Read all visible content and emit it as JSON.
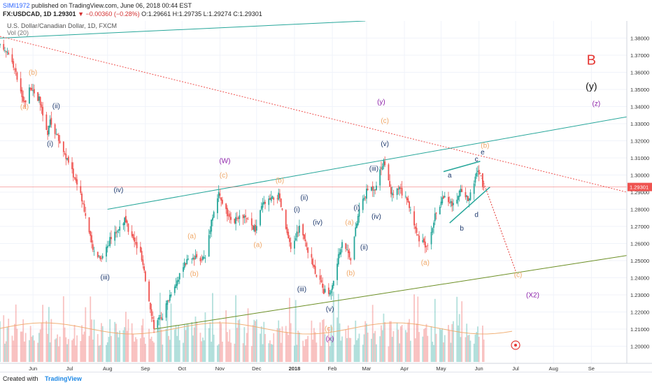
{
  "header": {
    "author": "SIMI1972",
    "published": "published on TradingView.com, June 06, 2018 00:44 EST",
    "symbol": "FX:USDCAD, 1D",
    "last": "1.29301",
    "change": "−0.00360 (−0.28%)",
    "ohlc": "O:1.29661 H:1.29735 L:1.29274 C:1.29301"
  },
  "footer": {
    "created_with": "Created with",
    "brand": "TradingView"
  },
  "colors": {
    "up": "#26a69a",
    "down": "#ef5350",
    "price_line": "#ef5350",
    "channel": "#26a69a",
    "support": "#6b8e23"
  },
  "chart_data": {
    "type": "candlestick",
    "title": "U.S. Dollar/Canadian Dollar, 1D, FXCM",
    "indicator": "Vol (20)",
    "y_range": [
      1.19,
      1.39
    ],
    "y_ticks": [
      "1.38000",
      "1.37000",
      "1.36000",
      "1.35000",
      "1.34000",
      "1.33000",
      "1.32000",
      "1.31000",
      "1.30000",
      "1.29000",
      "1.28000",
      "1.27000",
      "1.26000",
      "1.25000",
      "1.24000",
      "1.23000",
      "1.22000",
      "1.21000",
      "1.20000"
    ],
    "y_tick_values": [
      1.38,
      1.37,
      1.36,
      1.35,
      1.34,
      1.33,
      1.32,
      1.31,
      1.3,
      1.29,
      1.28,
      1.27,
      1.26,
      1.25,
      1.24,
      1.23,
      1.22,
      1.21,
      1.2
    ],
    "x_range": [
      "2017-05-05",
      "2018-09-30"
    ],
    "x_ticks": [
      {
        "label": "Jun",
        "date": "2017-06-01"
      },
      {
        "label": "Jul",
        "date": "2017-07-01"
      },
      {
        "label": "Aug",
        "date": "2017-08-01"
      },
      {
        "label": "Sep",
        "date": "2017-09-01"
      },
      {
        "label": "Oct",
        "date": "2017-10-01"
      },
      {
        "label": "Nov",
        "date": "2017-11-01"
      },
      {
        "label": "Dec",
        "date": "2017-12-01"
      },
      {
        "label": "2018",
        "date": "2018-01-01"
      },
      {
        "label": "Feb",
        "date": "2018-02-01"
      },
      {
        "label": "Mar",
        "date": "2018-03-01"
      },
      {
        "label": "Apr",
        "date": "2018-04-01"
      },
      {
        "label": "May",
        "date": "2018-05-01"
      },
      {
        "label": "Jun",
        "date": "2018-06-01"
      },
      {
        "label": "Jul",
        "date": "2018-07-01"
      },
      {
        "label": "Aug",
        "date": "2018-08-01"
      },
      {
        "label": "Se",
        "date": "2018-09-01"
      }
    ],
    "last_price": 1.29301,
    "last_price_label": "1.29301",
    "price_path": [
      [
        "2017-05-05",
        1.375
      ],
      [
        "2017-05-12",
        1.372
      ],
      [
        "2017-05-22",
        1.35
      ],
      [
        "2017-05-25",
        1.342
      ],
      [
        "2017-05-30",
        1.352
      ],
      [
        "2017-06-06",
        1.344
      ],
      [
        "2017-06-13",
        1.323
      ],
      [
        "2017-06-15",
        1.332
      ],
      [
        "2017-06-26",
        1.314
      ],
      [
        "2017-07-10",
        1.29
      ],
      [
        "2017-07-20",
        1.256
      ],
      [
        "2017-07-27",
        1.252
      ],
      [
        "2017-08-03",
        1.262
      ],
      [
        "2017-08-15",
        1.274
      ],
      [
        "2017-08-18",
        1.268
      ],
      [
        "2017-08-28",
        1.254
      ],
      [
        "2017-09-08",
        1.212
      ],
      [
        "2017-09-15",
        1.218
      ],
      [
        "2017-09-22",
        1.232
      ],
      [
        "2017-10-05",
        1.25
      ],
      [
        "2017-10-20",
        1.252
      ],
      [
        "2017-10-25",
        1.274
      ],
      [
        "2017-10-31",
        1.289
      ],
      [
        "2017-11-10",
        1.272
      ],
      [
        "2017-11-20",
        1.276
      ],
      [
        "2017-11-30",
        1.268
      ],
      [
        "2017-12-06",
        1.283
      ],
      [
        "2017-12-19",
        1.288
      ],
      [
        "2017-12-29",
        1.256
      ],
      [
        "2018-01-05",
        1.27
      ],
      [
        "2018-01-17",
        1.246
      ],
      [
        "2018-01-25",
        1.232
      ],
      [
        "2018-01-31",
        1.232
      ],
      [
        "2018-02-09",
        1.262
      ],
      [
        "2018-02-16",
        1.252
      ],
      [
        "2018-02-23",
        1.28
      ],
      [
        "2018-03-02",
        1.292
      ],
      [
        "2018-03-08",
        1.293
      ],
      [
        "2018-03-15",
        1.309
      ],
      [
        "2018-03-21",
        1.288
      ],
      [
        "2018-03-28",
        1.292
      ],
      [
        "2018-04-05",
        1.282
      ],
      [
        "2018-04-13",
        1.262
      ],
      [
        "2018-04-19",
        1.258
      ],
      [
        "2018-04-26",
        1.276
      ],
      [
        "2018-05-04",
        1.289
      ],
      [
        "2018-05-11",
        1.282
      ],
      [
        "2018-05-17",
        1.292
      ],
      [
        "2018-05-24",
        1.285
      ],
      [
        "2018-05-30",
        1.303
      ],
      [
        "2018-06-05",
        1.293
      ]
    ],
    "channel_upper": [
      [
        "2017-08-01",
        1.28
      ],
      [
        "2018-09-30",
        1.334
      ]
    ],
    "channel_lower": [
      [
        "2017-09-08",
        1.21
      ],
      [
        "2018-09-30",
        1.253
      ]
    ],
    "top_line": [
      [
        "2017-05-05",
        1.38
      ],
      [
        "2018-02-28",
        1.39
      ]
    ],
    "downtrend_dotted": [
      [
        "2017-05-05",
        1.381
      ],
      [
        "2018-09-30",
        1.29
      ]
    ],
    "wedge_upper": [
      [
        "2018-05-03",
        1.302
      ],
      [
        "2018-06-02",
        1.308
      ]
    ],
    "wedge_lower": [
      [
        "2018-05-08",
        1.272
      ],
      [
        "2018-06-10",
        1.293
      ]
    ],
    "projection_dotted": [
      [
        "2018-06-01",
        1.303
      ],
      [
        "2018-07-01",
        1.244
      ]
    ],
    "volume": {
      "axis_label_tick": "Vol",
      "base_level": 0.55
    },
    "annotations": [
      {
        "text": "(b)",
        "date": "2017-06-01",
        "price": 1.3585,
        "color": "#f0a868",
        "size": 10
      },
      {
        "text": "(a)",
        "date": "2017-05-25",
        "price": 1.3385,
        "color": "#f0a868",
        "size": 10
      },
      {
        "text": "(ii)",
        "date": "2017-06-20",
        "price": 1.339,
        "color": "#1f3a6e",
        "size": 10
      },
      {
        "text": "(i)",
        "date": "2017-06-15",
        "price": 1.317,
        "color": "#1f3a6e",
        "size": 10
      },
      {
        "text": "(iv)",
        "date": "2017-08-10",
        "price": 1.29,
        "color": "#1f3a6e",
        "size": 10
      },
      {
        "text": "(iii)",
        "date": "2017-07-30",
        "price": 1.239,
        "color": "#1f3a6e",
        "size": 10
      },
      {
        "text": "(a)",
        "date": "2017-10-09",
        "price": 1.263,
        "color": "#f0a868",
        "size": 10
      },
      {
        "text": "(b)",
        "date": "2017-10-11",
        "price": 1.241,
        "color": "#f0a868",
        "size": 10
      },
      {
        "text": "(W)",
        "date": "2017-11-05",
        "price": 1.307,
        "color": "#8e24aa",
        "size": 10
      },
      {
        "text": "(c)",
        "date": "2017-11-04",
        "price": 1.2985,
        "color": "#f0a868",
        "size": 10
      },
      {
        "text": "(a)",
        "date": "2017-12-02",
        "price": 1.258,
        "color": "#f0a868",
        "size": 10
      },
      {
        "text": "(b)",
        "date": "2017-12-20",
        "price": 1.2955,
        "color": "#f0a868",
        "size": 10
      },
      {
        "text": "(ii)",
        "date": "2018-01-09",
        "price": 1.2855,
        "color": "#1f3a6e",
        "size": 10
      },
      {
        "text": "(i)",
        "date": "2018-01-03",
        "price": 1.2785,
        "color": "#1f3a6e",
        "size": 10
      },
      {
        "text": "(iv)",
        "date": "2018-01-20",
        "price": 1.271,
        "color": "#1f3a6e",
        "size": 10
      },
      {
        "text": "(iii)",
        "date": "2018-01-07",
        "price": 1.232,
        "color": "#1f3a6e",
        "size": 10
      },
      {
        "text": "(v)",
        "date": "2018-01-30",
        "price": 1.2205,
        "color": "#1f3a6e",
        "size": 10
      },
      {
        "text": "(c)",
        "date": "2018-01-29",
        "price": 1.209,
        "color": "#f0a868",
        "size": 10
      },
      {
        "text": "(x)",
        "date": "2018-01-30",
        "price": 1.203,
        "color": "#8e24aa",
        "size": 10
      },
      {
        "text": "(a)",
        "date": "2018-02-15",
        "price": 1.271,
        "color": "#f0a868",
        "size": 10
      },
      {
        "text": "(b)",
        "date": "2018-02-16",
        "price": 1.2415,
        "color": "#f0a868",
        "size": 10
      },
      {
        "text": "(i)",
        "date": "2018-02-21",
        "price": 1.2795,
        "color": "#1f3a6e",
        "size": 10
      },
      {
        "text": "(ii)",
        "date": "2018-02-27",
        "price": 1.2565,
        "color": "#1f3a6e",
        "size": 10
      },
      {
        "text": "(iii)",
        "date": "2018-03-07",
        "price": 1.3025,
        "color": "#1f3a6e",
        "size": 10
      },
      {
        "text": "(iv)",
        "date": "2018-03-09",
        "price": 1.2745,
        "color": "#1f3a6e",
        "size": 10
      },
      {
        "text": "(v)",
        "date": "2018-03-16",
        "price": 1.317,
        "color": "#1f3a6e",
        "size": 10
      },
      {
        "text": "(y)",
        "date": "2018-03-13",
        "price": 1.3415,
        "color": "#8e24aa",
        "size": 10
      },
      {
        "text": "(c)",
        "date": "2018-03-16",
        "price": 1.3305,
        "color": "#f0a868",
        "size": 10
      },
      {
        "text": "(a)",
        "date": "2018-04-18",
        "price": 1.2475,
        "color": "#f0a868",
        "size": 10
      },
      {
        "text": "a",
        "date": "2018-05-08",
        "price": 1.2985,
        "color": "#1f3a6e",
        "size": 10
      },
      {
        "text": "b",
        "date": "2018-05-18",
        "price": 1.2675,
        "color": "#1f3a6e",
        "size": 10
      },
      {
        "text": "c",
        "date": "2018-05-30",
        "price": 1.308,
        "color": "#1f3a6e",
        "size": 10
      },
      {
        "text": "d",
        "date": "2018-05-30",
        "price": 1.2755,
        "color": "#1f3a6e",
        "size": 10
      },
      {
        "text": "e",
        "date": "2018-06-04",
        "price": 1.312,
        "color": "#1f3a6e",
        "size": 10
      },
      {
        "text": "(b)",
        "date": "2018-06-06",
        "price": 1.316,
        "color": "#f0a868",
        "size": 10
      },
      {
        "text": "(c)",
        "date": "2018-07-03",
        "price": 1.2405,
        "color": "#f0a868",
        "size": 10
      },
      {
        "text": "(X2)",
        "date": "2018-07-15",
        "price": 1.2285,
        "color": "#8e24aa",
        "size": 10
      },
      {
        "text": "B",
        "date": "2018-09-01",
        "price": 1.3645,
        "color": "#e53935",
        "size": 20
      },
      {
        "text": "(y)",
        "date": "2018-09-01",
        "price": 1.35,
        "color": "#111111",
        "size": 14
      },
      {
        "text": "(z)",
        "date": "2018-09-05",
        "price": 1.3405,
        "color": "#8e24aa",
        "size": 10
      }
    ]
  }
}
